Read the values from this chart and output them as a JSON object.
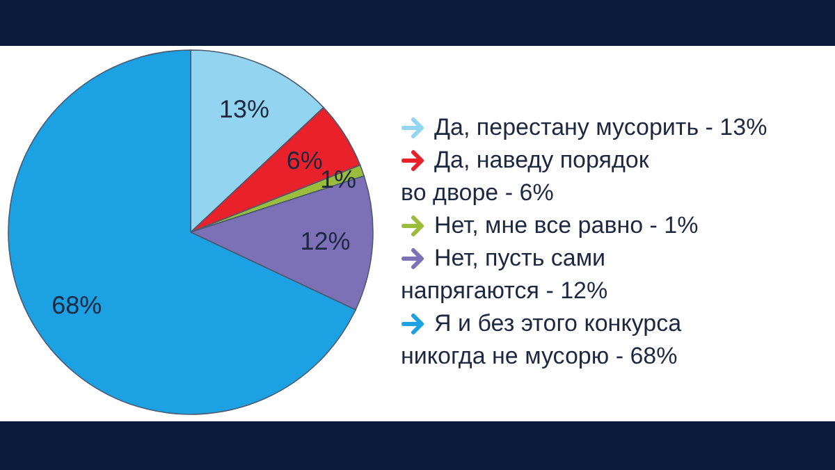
{
  "chart_data": {
    "type": "pie",
    "categories": [
      "Да, перестану мусорить - 13%",
      "Да, наведу порядок\nво дворе - 6%",
      "Нет, мне все равно - 1%",
      "Нет, пусть сами\nнапрягаются - 12%",
      "Я и без этого конкурса\nникогда не мусорю - 68%"
    ],
    "values": [
      13,
      6,
      1,
      12,
      68
    ],
    "colors": [
      "#93d4f0",
      "#e8212b",
      "#9cbd3c",
      "#7c70b6",
      "#1ca2e2"
    ],
    "value_labels": [
      "13%",
      "6%",
      "1%",
      "12%",
      "68%"
    ],
    "legend": "right"
  }
}
